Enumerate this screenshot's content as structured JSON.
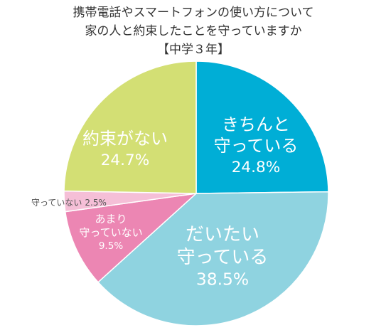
{
  "chart_data": {
    "type": "pie",
    "title": "携帯電話やスマートフォンの使い方について\n家の人と約束したことを守っていますか",
    "subtitle": "【中学３年】",
    "categories": [
      "きちんと\n守っている",
      "だいたい\n守っている",
      "あまり\n守っていない",
      "守っていない",
      "約束がない"
    ],
    "values": [
      24.8,
      38.5,
      9.5,
      2.5,
      24.7
    ],
    "value_labels": [
      "24.8%",
      "38.5%",
      "9.5%",
      "2.5%",
      "24.7%"
    ],
    "colors": [
      "#00aed6",
      "#8fd3e0",
      "#ec86b3",
      "#f5bfd7",
      "#d3df74"
    ]
  }
}
